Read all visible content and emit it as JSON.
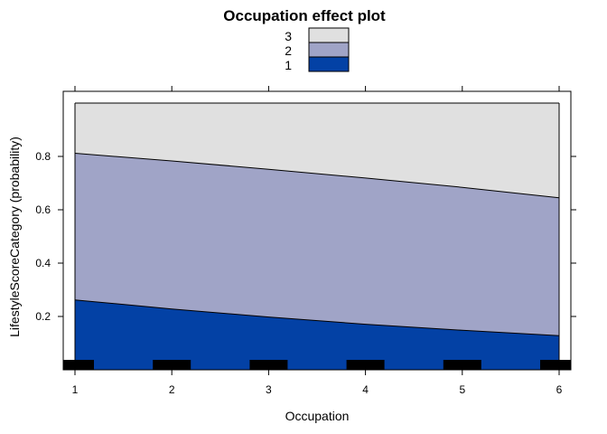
{
  "chart_data": {
    "type": "area",
    "title": "Occupation effect plot",
    "xlabel": "Occupation",
    "ylabel": "LifestyleScoreCategory (probability)",
    "x_ticks": [
      "1",
      "2",
      "3",
      "4",
      "5",
      "6"
    ],
    "y_ticks": [
      "0.2",
      "0.4",
      "0.6",
      "0.8"
    ],
    "xlim": [
      0.95,
      6.15
    ],
    "ylim": [
      0,
      1
    ],
    "x": [
      1,
      2,
      3,
      4,
      5,
      6
    ],
    "cumulative_boundaries": {
      "1": [
        0.262,
        0.228,
        0.198,
        0.171,
        0.148,
        0.128
      ],
      "1+2": [
        0.812,
        0.783,
        0.752,
        0.719,
        0.684,
        0.645
      ]
    },
    "series": [
      {
        "name": "1",
        "color": "#0341a5",
        "values": [
          0.262,
          0.228,
          0.198,
          0.171,
          0.148,
          0.128
        ]
      },
      {
        "name": "2",
        "color": "#a0a4c7",
        "values": [
          0.55,
          0.555,
          0.554,
          0.548,
          0.536,
          0.517
        ]
      },
      {
        "name": "3",
        "color": "#e0e0e0",
        "values": [
          0.188,
          0.217,
          0.248,
          0.281,
          0.316,
          0.355
        ]
      }
    ],
    "legend": {
      "placement": "top-center",
      "entries": [
        "3",
        "2",
        "1"
      ]
    },
    "rug": [
      1,
      2,
      3,
      4,
      5,
      6
    ],
    "grid": false
  }
}
